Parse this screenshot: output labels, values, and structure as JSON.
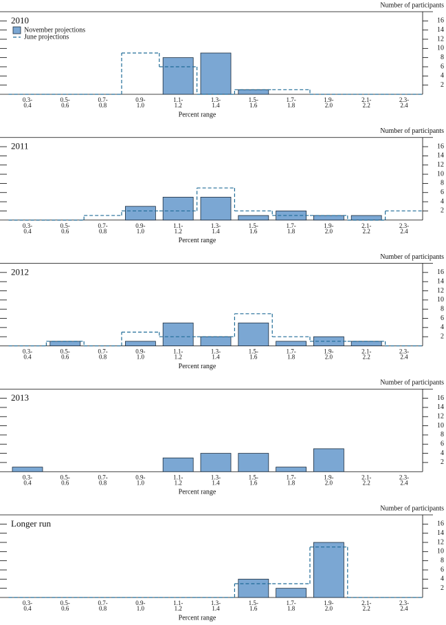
{
  "chart_data": [
    {
      "type": "bar",
      "title": "2010",
      "x_label": "Percent range",
      "y_label": "Number of participants",
      "categories": [
        "0.3-0.4",
        "0.5-0.6",
        "0.7-0.8",
        "0.9-1.0",
        "1.1-1.2",
        "1.3-1.4",
        "1.5-1.6",
        "1.7-1.8",
        "1.9-2.0",
        "2.1-2.2",
        "2.3-2.4"
      ],
      "series": [
        {
          "name": "November projections",
          "style": "bar",
          "color": "#7ba7d3",
          "values": [
            0,
            0,
            0,
            0,
            8,
            9,
            1,
            0,
            0,
            0,
            0
          ]
        },
        {
          "name": "June projections",
          "style": "dashed-step",
          "color": "#1d6a96",
          "values": [
            0,
            0,
            0,
            9,
            6,
            0,
            1,
            1,
            0,
            0,
            0
          ]
        }
      ],
      "ylim": [
        0,
        18
      ],
      "yticks": [
        2,
        4,
        6,
        8,
        10,
        12,
        14,
        16
      ]
    },
    {
      "type": "bar",
      "title": "2011",
      "x_label": "Percent range",
      "y_label": "Number of participants",
      "categories": [
        "0.3-0.4",
        "0.5-0.6",
        "0.7-0.8",
        "0.9-1.0",
        "1.1-1.2",
        "1.3-1.4",
        "1.5-1.6",
        "1.7-1.8",
        "1.9-2.0",
        "2.1-2.2",
        "2.3-2.4"
      ],
      "series": [
        {
          "style": "bar",
          "color": "#7ba7d3",
          "values": [
            0,
            0,
            0,
            3,
            5,
            5,
            1,
            2,
            1,
            1,
            0
          ]
        },
        {
          "style": "dashed-step",
          "color": "#1d6a96",
          "values": [
            0,
            0,
            1,
            2,
            2,
            7,
            2,
            1,
            1,
            0,
            2
          ]
        }
      ],
      "ylim": [
        0,
        18
      ],
      "yticks": [
        2,
        4,
        6,
        8,
        10,
        12,
        14,
        16
      ]
    },
    {
      "type": "bar",
      "title": "2012",
      "x_label": "Percent range",
      "y_label": "Number of participants",
      "categories": [
        "0.3-0.4",
        "0.5-0.6",
        "0.7-0.8",
        "0.9-1.0",
        "1.1-1.2",
        "1.3-1.4",
        "1.5-1.6",
        "1.7-1.8",
        "1.9-2.0",
        "2.1-2.2",
        "2.3-2.4"
      ],
      "series": [
        {
          "style": "bar",
          "color": "#7ba7d3",
          "values": [
            0,
            1,
            0,
            1,
            5,
            2,
            5,
            1,
            2,
            1,
            0
          ]
        },
        {
          "style": "dashed-step",
          "color": "#1d6a96",
          "values": [
            0,
            1,
            0,
            3,
            2,
            2,
            7,
            2,
            1,
            1,
            0
          ]
        }
      ],
      "ylim": [
        0,
        18
      ],
      "yticks": [
        2,
        4,
        6,
        8,
        10,
        12,
        14,
        16
      ]
    },
    {
      "type": "bar",
      "title": "2013",
      "x_label": "Percent range",
      "y_label": "Number of participants",
      "categories": [
        "0.3-0.4",
        "0.5-0.6",
        "0.7-0.8",
        "0.9-1.0",
        "1.1-1.2",
        "1.3-1.4",
        "1.5-1.6",
        "1.7-1.8",
        "1.9-2.0",
        "2.1-2.2",
        "2.3-2.4"
      ],
      "series": [
        {
          "style": "bar",
          "color": "#7ba7d3",
          "values": [
            1,
            0,
            0,
            0,
            3,
            4,
            4,
            1,
            5,
            0,
            0
          ]
        }
      ],
      "ylim": [
        0,
        18
      ],
      "yticks": [
        2,
        4,
        6,
        8,
        10,
        12,
        14,
        16
      ]
    },
    {
      "type": "bar",
      "title": "Longer run",
      "x_label": "Percent range",
      "y_label": "Number of participants",
      "categories": [
        "0.3-0.4",
        "0.5-0.6",
        "0.7-0.8",
        "0.9-1.0",
        "1.1-1.2",
        "1.3-1.4",
        "1.5-1.6",
        "1.7-1.8",
        "1.9-2.0",
        "2.1-2.2",
        "2.3-2.4"
      ],
      "series": [
        {
          "style": "bar",
          "color": "#7ba7d3",
          "values": [
            0,
            0,
            0,
            0,
            0,
            0,
            4,
            2,
            12,
            0,
            0
          ]
        },
        {
          "style": "dashed-step",
          "color": "#1d6a96",
          "values": [
            0,
            0,
            0,
            0,
            0,
            0,
            3,
            3,
            11,
            0,
            0
          ]
        }
      ],
      "ylim": [
        0,
        18
      ],
      "yticks": [
        2,
        4,
        6,
        8,
        10,
        12,
        14,
        16
      ]
    }
  ]
}
